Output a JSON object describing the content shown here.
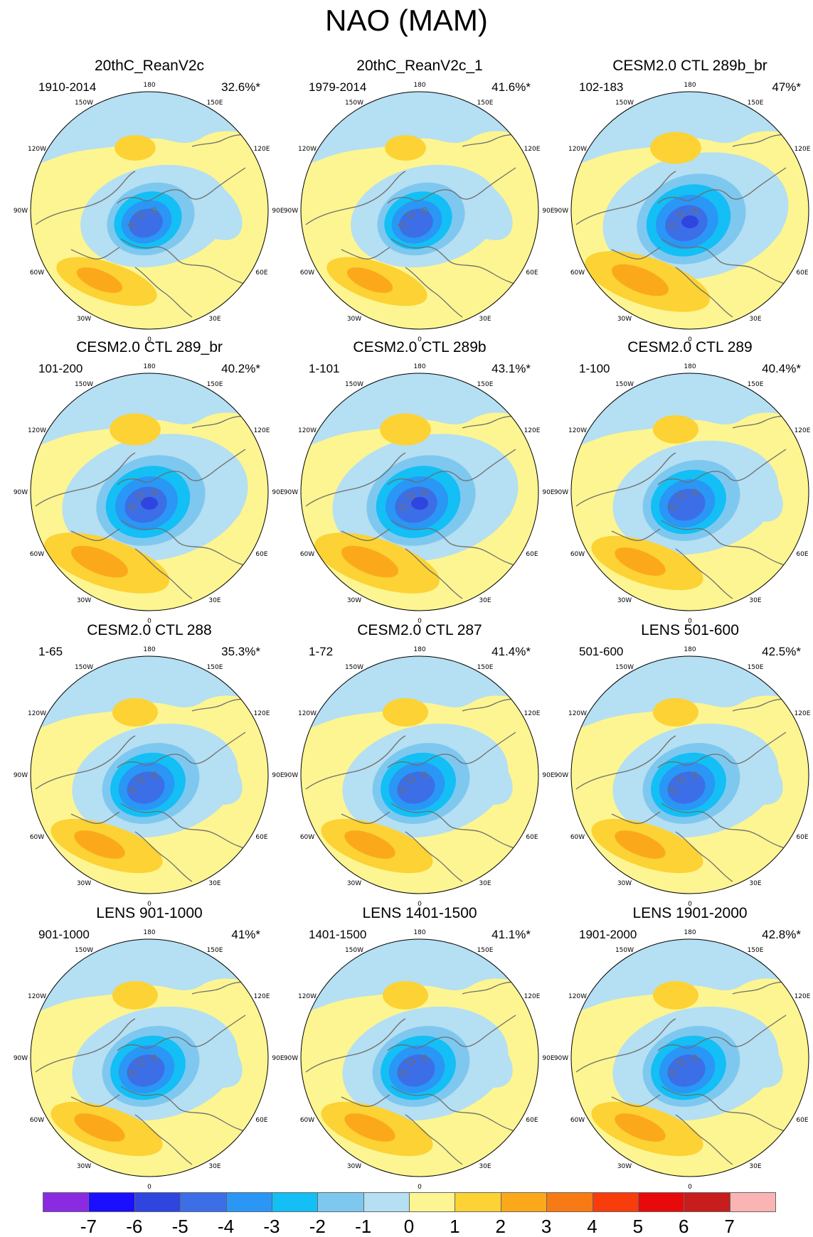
{
  "title": "NAO (MAM)",
  "lon_labels": [
    "180",
    "150E",
    "120E",
    "90E",
    "60E",
    "30E",
    "0",
    "30W",
    "60W",
    "90W",
    "120W",
    "150W"
  ],
  "panels": [
    {
      "title": "20thC_ReanV2c",
      "years": "1910-2014",
      "pct": "32.6%*",
      "strength": "weak"
    },
    {
      "title": "20thC_ReanV2c_1",
      "years": "1979-2014",
      "pct": "41.6%*",
      "strength": "weak"
    },
    {
      "title": "CESM2.0 CTL 289b_br",
      "years": "102-183",
      "pct": "47%*",
      "strength": "strong"
    },
    {
      "title": "CESM2.0 CTL 289_br",
      "years": "101-200",
      "pct": "40.2%*",
      "strength": "strong"
    },
    {
      "title": "CESM2.0 CTL 289b",
      "years": "1-101",
      "pct": "43.1%*",
      "strength": "strong"
    },
    {
      "title": "CESM2.0 CTL 289",
      "years": "1-100",
      "pct": "40.4%*",
      "strength": "medium"
    },
    {
      "title": "CESM2.0 CTL 288",
      "years": "1-65",
      "pct": "35.3%*",
      "strength": "medium"
    },
    {
      "title": "CESM2.0 CTL 287",
      "years": "1-72",
      "pct": "41.4%*",
      "strength": "medium"
    },
    {
      "title": "LENS 501-600",
      "years": "501-600",
      "pct": "42.5%*",
      "strength": "medium"
    },
    {
      "title": "LENS 901-1000",
      "years": "901-1000",
      "pct": "41%*",
      "strength": "medium"
    },
    {
      "title": "LENS 1401-1500",
      "years": "1401-1500",
      "pct": "41.1%*",
      "strength": "medium"
    },
    {
      "title": "LENS 1901-2000",
      "years": "1901-2000",
      "pct": "42.8%*",
      "strength": "medium"
    }
  ],
  "colorbar": {
    "labels": [
      "-7",
      "-6",
      "-5",
      "-4",
      "-3",
      "-2",
      "-1",
      "0",
      "1",
      "2",
      "3",
      "4",
      "5",
      "6",
      "7"
    ],
    "colors": [
      "#8a2be2",
      "#1a0fff",
      "#2f45e0",
      "#3c6ee8",
      "#2a96f5",
      "#13bff5",
      "#7ec8f0",
      "#b5dff2",
      "#fdf591",
      "#fcd234",
      "#fba91a",
      "#f77a14",
      "#f83c0c",
      "#e80a0a",
      "#c71d1d",
      "#fab4b4"
    ]
  },
  "colors": {
    "land": "#6e6e6e",
    "border": "#555555"
  }
}
